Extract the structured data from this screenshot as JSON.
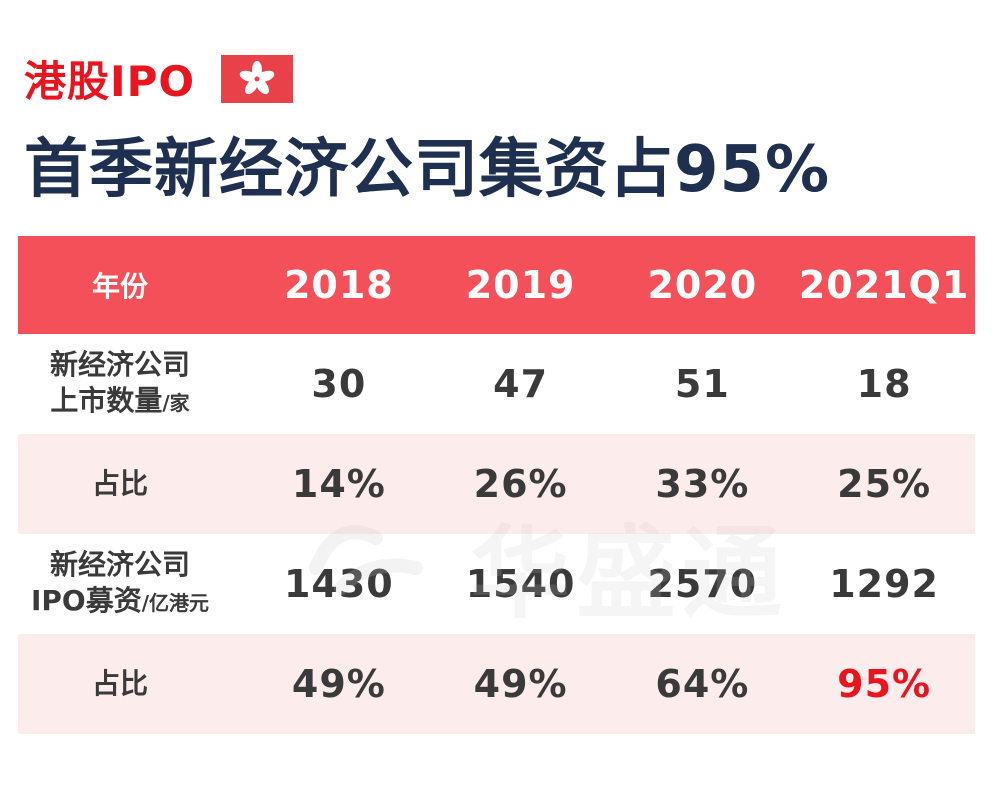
{
  "header": {
    "tag": "港股IPO",
    "headline": "首季新经济公司集资占95%"
  },
  "watermark": "华盛通",
  "colors": {
    "header_bg": "#f4505a",
    "shade_bg": "#fdecec",
    "highlight": "#e8141e",
    "title": "#1f2f4f"
  },
  "chart_data": {
    "type": "table",
    "title": "首季新经济公司集资占95%",
    "header": {
      "label": "年份",
      "years": [
        "2018",
        "2019",
        "2020",
        "2021Q1"
      ]
    },
    "rows": [
      {
        "label_line1": "新经济公司",
        "label_line2": "上市数量",
        "unit": "/家",
        "values": [
          "30",
          "47",
          "51",
          "18"
        ]
      },
      {
        "label_line1": "占比",
        "label_line2": "",
        "unit": "",
        "values": [
          "14%",
          "26%",
          "33%",
          "25%"
        ]
      },
      {
        "label_line1": "新经济公司",
        "label_line2": "IPO募资",
        "unit": "/亿港元",
        "values": [
          "1430",
          "1540",
          "2570",
          "1292"
        ]
      },
      {
        "label_line1": "占比",
        "label_line2": "",
        "unit": "",
        "values": [
          "49%",
          "49%",
          "64%",
          "95%"
        ],
        "highlight_index": 3
      }
    ]
  }
}
